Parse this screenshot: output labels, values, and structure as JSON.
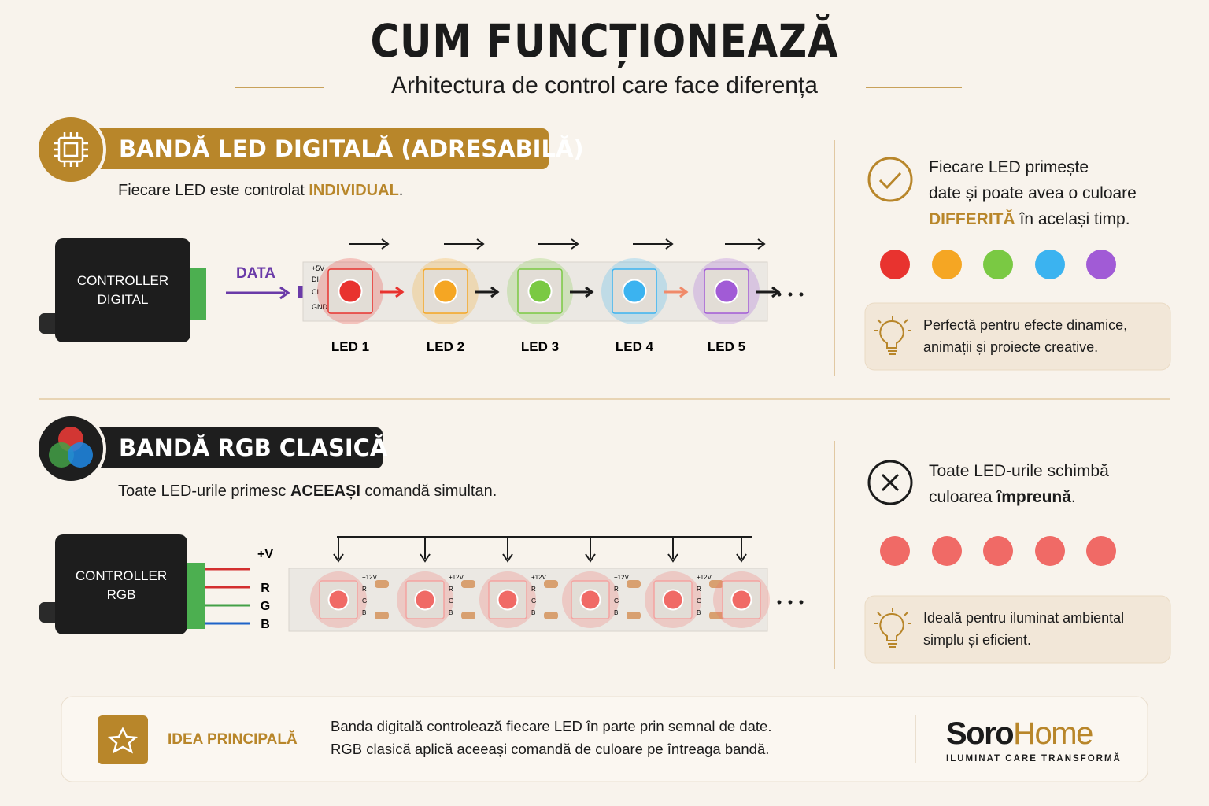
{
  "header": {
    "title": "CUM FUNCȚIONEAZĂ",
    "subtitle": "Arhitectura de control care face diferența"
  },
  "digital": {
    "title": "BANDĂ LED DIGITALĂ (ADRESABILĂ)",
    "description": [
      "Fiecare LED este controlat ",
      "INDIVIDUAL",
      "."
    ],
    "controller": [
      "CONTROLLER",
      "DIGITAL"
    ],
    "signal": "DATA",
    "pins": [
      "+5V",
      "DI",
      "CI",
      "GND"
    ],
    "leds": [
      "LED 1",
      "LED 2",
      "LED 3",
      "LED 4",
      "LED 5"
    ],
    "feature": [
      "Fiecare LED primește",
      "date și poate avea o culoare",
      "DIFFERITĂ",
      " în același timp."
    ],
    "tip": [
      "Perfectă pentru efecte dinamice,",
      "animații și proiecte creative."
    ]
  },
  "rgb": {
    "title": "BANDĂ RGB CLASICĂ",
    "description": [
      "Toate LED-urile primesc ",
      "ACEEAȘI",
      " comandă simultan."
    ],
    "controller": [
      "CONTROLLER",
      "RGB"
    ],
    "wires": [
      "+V",
      "R",
      "G",
      "B"
    ],
    "pins": [
      "+12V",
      "R",
      "G",
      "B"
    ],
    "feature": [
      "Toate LED-urile schimbă",
      "culoarea ",
      "împreună",
      "."
    ],
    "tip": [
      "Ideală pentru iluminat ambiental",
      "simplu și eficient."
    ]
  },
  "footer": {
    "label": "IDEA PRINCIPALĂ",
    "text": [
      "Banda digitală controlează fiecare LED în parte prin semnal de date.",
      "RGB clasică aplică aceeași comandă de culoare pe întreaga bandă."
    ],
    "brand": [
      "Soro",
      "Home"
    ],
    "tagline": "ILUMINAT CARE TRANSFORMĂ"
  }
}
